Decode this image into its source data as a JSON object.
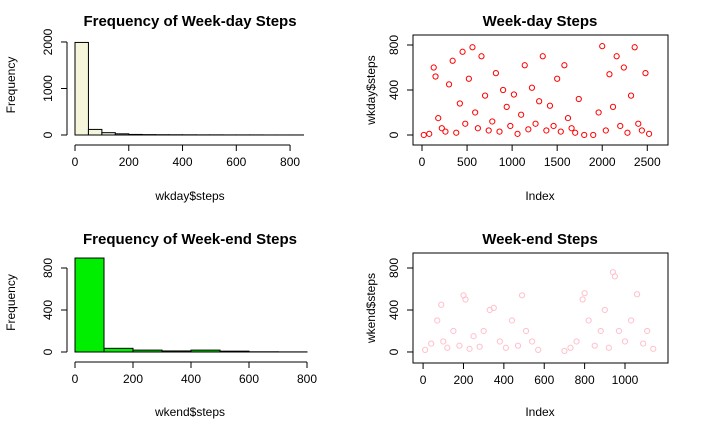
{
  "chart_data": [
    {
      "type": "histogram",
      "title": "Frequency of Week-day Steps",
      "x_label": "wkday$steps",
      "y_label": "Frequency",
      "color": "#f5f5dc",
      "bins": [
        0,
        50,
        100,
        150,
        200,
        250,
        300,
        350,
        400,
        450,
        500,
        550,
        600,
        650,
        700,
        750,
        800,
        850
      ],
      "values": [
        1990,
        120,
        50,
        25,
        12,
        8,
        6,
        5,
        4,
        3,
        3,
        2,
        2,
        2,
        1,
        1,
        1
      ],
      "xlim": [
        0,
        850
      ],
      "ylim": [
        0,
        2150
      ],
      "xticks": [
        0,
        200,
        400,
        600,
        800
      ],
      "yticks": [
        0,
        1000,
        2000
      ]
    },
    {
      "type": "scatter",
      "title": "Week-day Steps",
      "x_label": "Index",
      "y_label": "wkday$steps",
      "color": "#ff0000",
      "x": [
        20,
        80,
        130,
        150,
        180,
        220,
        260,
        300,
        340,
        380,
        420,
        450,
        480,
        520,
        560,
        590,
        620,
        660,
        700,
        740,
        780,
        820,
        860,
        900,
        940,
        980,
        1020,
        1060,
        1100,
        1140,
        1180,
        1220,
        1260,
        1300,
        1340,
        1380,
        1420,
        1460,
        1500,
        1540,
        1580,
        1620,
        1660,
        1700,
        1740,
        1800,
        1900,
        1960,
        2000,
        2040,
        2080,
        2120,
        2160,
        2200,
        2240,
        2280,
        2320,
        2360,
        2400,
        2440,
        2480,
        2520
      ],
      "values": [
        0,
        10,
        600,
        520,
        150,
        60,
        30,
        450,
        660,
        20,
        280,
        740,
        100,
        500,
        780,
        200,
        60,
        700,
        350,
        40,
        120,
        550,
        30,
        400,
        250,
        80,
        360,
        10,
        180,
        620,
        50,
        420,
        100,
        300,
        700,
        40,
        260,
        80,
        500,
        30,
        620,
        150,
        60,
        20,
        320,
        0,
        0,
        200,
        790,
        40,
        540,
        250,
        700,
        80,
        600,
        20,
        350,
        780,
        100,
        40,
        550,
        10
      ],
      "xlim": [
        -100,
        2730
      ],
      "ylim": [
        -89,
        889
      ],
      "xticks": [
        0,
        500,
        1000,
        1500,
        2000,
        2500
      ],
      "yticks": [
        0,
        400,
        800
      ]
    },
    {
      "type": "histogram",
      "title": "Frequency of Week-end Steps",
      "x_label": "wkend$steps",
      "y_label": "Frequency",
      "color": "#00ee00",
      "bins": [
        0,
        100,
        200,
        300,
        400,
        500,
        600,
        700,
        800
      ],
      "values": [
        895,
        35,
        18,
        10,
        18,
        8,
        2,
        1
      ],
      "xlim": [
        0,
        800
      ],
      "ylim": [
        0,
        943
      ],
      "xticks": [
        0,
        200,
        400,
        600,
        800
      ],
      "yticks": [
        0,
        400,
        800
      ]
    },
    {
      "type": "scatter",
      "title": "Week-end Steps",
      "x_label": "Index",
      "y_label": "wkend$steps",
      "color": "#ffc0cb",
      "x": [
        10,
        40,
        70,
        90,
        100,
        120,
        150,
        180,
        200,
        210,
        230,
        250,
        280,
        300,
        330,
        350,
        380,
        410,
        440,
        470,
        490,
        510,
        540,
        570,
        700,
        730,
        760,
        790,
        800,
        820,
        850,
        880,
        900,
        920,
        940,
        950,
        970,
        1000,
        1030,
        1060,
        1090,
        1110,
        1140
      ],
      "values": [
        20,
        80,
        300,
        450,
        100,
        40,
        200,
        60,
        540,
        500,
        30,
        150,
        50,
        200,
        400,
        420,
        100,
        40,
        300,
        60,
        540,
        200,
        100,
        20,
        10,
        40,
        100,
        500,
        560,
        300,
        60,
        200,
        400,
        40,
        760,
        720,
        200,
        100,
        300,
        550,
        80,
        200,
        30
      ],
      "xlim": [
        -50,
        1213
      ],
      "ylim": [
        -105,
        943
      ],
      "xticks": [
        0,
        200,
        400,
        600,
        800,
        1000
      ],
      "yticks": [
        0,
        400,
        800
      ]
    }
  ]
}
